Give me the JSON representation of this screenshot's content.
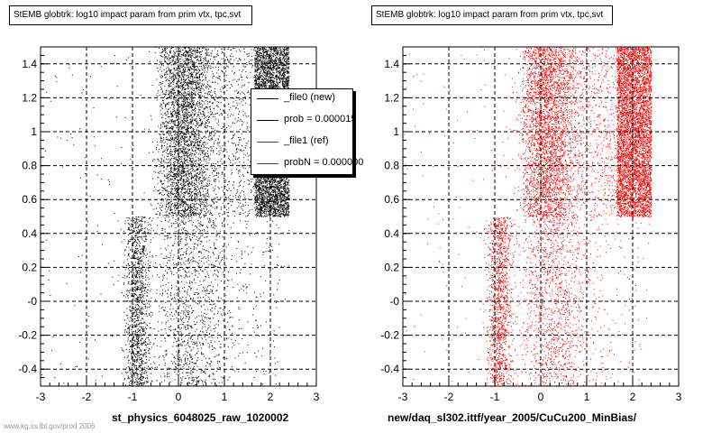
{
  "chart_data": [
    {
      "type": "scatter",
      "title": "StEMB globtrk: log10 impact param from prim vtx, tpc,svt",
      "xlabel": "st_physics_6048025_raw_1020002",
      "ylabel": "",
      "xlim": [
        -3,
        3
      ],
      "ylim": [
        -0.5,
        1.5
      ],
      "x_ticks": [
        "-3",
        "-2",
        "-1",
        "0",
        "1",
        "2",
        "3"
      ],
      "y_ticks": [
        "-0.4",
        "-0.2",
        "-0",
        "0.2",
        "0.4",
        "0.6",
        "0.8",
        "1",
        "1.2",
        "1.4"
      ],
      "grid": true,
      "marker_color": "#000000",
      "legend": {
        "position": "top-right",
        "entries": [
          {
            "label": "_file0 (new)",
            "color": "#000000"
          },
          {
            "label": "prob = 0.000015",
            "color": "#000000"
          },
          {
            "label": "_file1 (ref)",
            "color": "#ff0000"
          },
          {
            "label": "probN = 0.000000",
            "color": "#ff0000"
          }
        ]
      }
    },
    {
      "type": "scatter",
      "title": "StEMB globtrk: log10 impact param from prim vtx, tpc,svt",
      "xlabel": "new/daq_sl302.ittf/year_2005/CuCu200_MinBias/",
      "ylabel": "",
      "xlim": [
        -3,
        3
      ],
      "ylim": [
        -0.5,
        1.5
      ],
      "x_ticks": [
        "-3",
        "-2",
        "-1",
        "0",
        "1",
        "2",
        "3"
      ],
      "y_ticks": [
        "-0.4",
        "-0.2",
        "-0",
        "0.2",
        "0.4",
        "0.6",
        "0.8",
        "1",
        "1.2",
        "1.4"
      ],
      "grid": true,
      "marker_color": "#ff0000"
    }
  ],
  "footer": "www.kg.ss.lbl.gov/prod 2006"
}
